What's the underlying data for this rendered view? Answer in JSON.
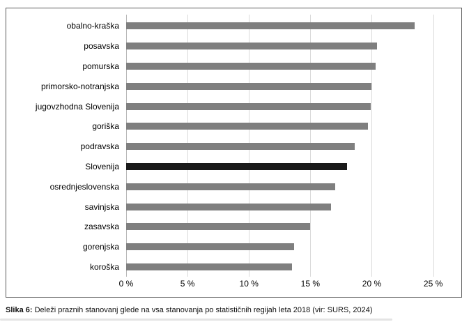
{
  "figure": {
    "caption_prefix": "Slika 6:",
    "caption_text": "Deleži praznih stanovanj glede na vsa stanovanja po statističnih regijah leta 2018 (vir: SURS, 2024)"
  },
  "chart_data": {
    "type": "bar",
    "orientation": "horizontal",
    "title": "",
    "xlabel": "",
    "ylabel": "",
    "categories": [
      "obalno-kraška",
      "posavska",
      "pomurska",
      "primorsko-notranjska",
      "jugovzhodna Slovenija",
      "goriška",
      "podravska",
      "Slovenija",
      "osrednjeslovenska",
      "savinjska",
      "zasavska",
      "gorenjska",
      "koroška"
    ],
    "values": [
      23.5,
      20.4,
      20.3,
      20.0,
      19.9,
      19.7,
      18.6,
      18.0,
      17.0,
      16.7,
      15.0,
      13.7,
      13.5
    ],
    "unit": "%",
    "highlight_category": "Slovenija",
    "x_ticks": [
      0,
      5,
      10,
      15,
      20,
      25
    ],
    "x_tick_labels": [
      "0 %",
      "5 %",
      "10 %",
      "15 %",
      "20 %",
      "25 %"
    ],
    "xlim": [
      0,
      26.5
    ],
    "grid": "vertical",
    "legend": "none",
    "colors": {
      "bar": "#7f7f7f",
      "highlight": "#1a1a1a",
      "gridline": "#d9d9d9",
      "zero_line": "#b7b7b7",
      "border": "#595959",
      "text": "#000000"
    }
  }
}
